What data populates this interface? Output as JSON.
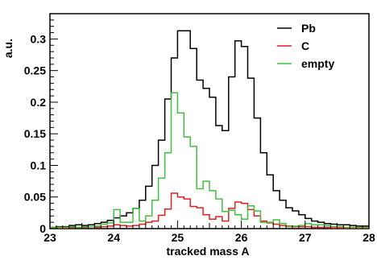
{
  "chart_data": {
    "type": "line",
    "style": "step-histogram",
    "xlabel": "tracked mass A",
    "ylabel": "a.u.",
    "xlim": [
      23,
      28
    ],
    "ylim": [
      0,
      0.34
    ],
    "xticks": [
      23,
      24,
      25,
      26,
      27,
      28
    ],
    "yticks": [
      0,
      0.05,
      0.1,
      0.15,
      0.2,
      0.25,
      0.3
    ],
    "ytick_labels": [
      "0",
      "0.05",
      "0.1",
      "0.15",
      "0.2",
      "0.25",
      "0.3"
    ],
    "bin_width": 0.1,
    "legend_position": "top-right",
    "grid": false,
    "x": [
      23.0,
      23.1,
      23.2,
      23.3,
      23.4,
      23.5,
      23.6,
      23.7,
      23.8,
      23.9,
      24.0,
      24.1,
      24.2,
      24.3,
      24.4,
      24.5,
      24.6,
      24.7,
      24.8,
      24.9,
      25.0,
      25.1,
      25.2,
      25.3,
      25.4,
      25.5,
      25.6,
      25.7,
      25.8,
      25.9,
      26.0,
      26.1,
      26.2,
      26.3,
      26.4,
      26.5,
      26.6,
      26.7,
      26.8,
      26.9,
      27.0,
      27.1,
      27.2,
      27.3,
      27.4,
      27.5,
      27.6,
      27.7,
      27.8,
      27.9
    ],
    "series": [
      {
        "name": "Pb",
        "color": "#000000",
        "values": [
          0.002,
          0.003,
          0.003,
          0.005,
          0.006,
          0.005,
          0.006,
          0.008,
          0.01,
          0.013,
          0.017,
          0.02,
          0.025,
          0.032,
          0.045,
          0.067,
          0.1,
          0.14,
          0.205,
          0.27,
          0.313,
          0.313,
          0.285,
          0.235,
          0.222,
          0.208,
          0.163,
          0.155,
          0.24,
          0.297,
          0.288,
          0.238,
          0.175,
          0.12,
          0.085,
          0.06,
          0.045,
          0.033,
          0.028,
          0.022,
          0.016,
          0.012,
          0.01,
          0.008,
          0.007,
          0.006,
          0.006,
          0.005,
          0.004,
          0.004
        ]
      },
      {
        "name": "C",
        "color": "#e02020",
        "values": [
          0.002,
          0.001,
          0.001,
          0.002,
          0.002,
          0.002,
          0.003,
          0.002,
          0.003,
          0.004,
          0.006,
          0.005,
          0.004,
          0.005,
          0.007,
          0.01,
          0.012,
          0.021,
          0.031,
          0.056,
          0.05,
          0.047,
          0.035,
          0.033,
          0.022,
          0.015,
          0.019,
          0.012,
          0.032,
          0.042,
          0.04,
          0.03,
          0.02,
          0.012,
          0.009,
          0.007,
          0.005,
          0.004,
          0.003,
          0.003,
          0.003,
          0.002,
          0.002,
          0.002,
          0.001,
          0.001,
          0.001,
          0.001,
          0.001,
          0.001
        ]
      },
      {
        "name": "empty",
        "color": "#40c040",
        "values": [
          0.002,
          0.002,
          0.002,
          0.003,
          0.002,
          0.003,
          0.003,
          0.004,
          0.007,
          0.009,
          0.03,
          0.01,
          0.01,
          0.032,
          0.012,
          0.02,
          0.045,
          0.08,
          0.12,
          0.215,
          0.183,
          0.145,
          0.13,
          0.063,
          0.075,
          0.06,
          0.047,
          0.027,
          0.029,
          0.022,
          0.015,
          0.036,
          0.028,
          0.01,
          0.01,
          0.014,
          0.008,
          0.003,
          0.004,
          0.005,
          0.008,
          0.006,
          0.006,
          0.005,
          0.003,
          0.003,
          0.002,
          0.002,
          0.002,
          0.002
        ]
      }
    ]
  }
}
